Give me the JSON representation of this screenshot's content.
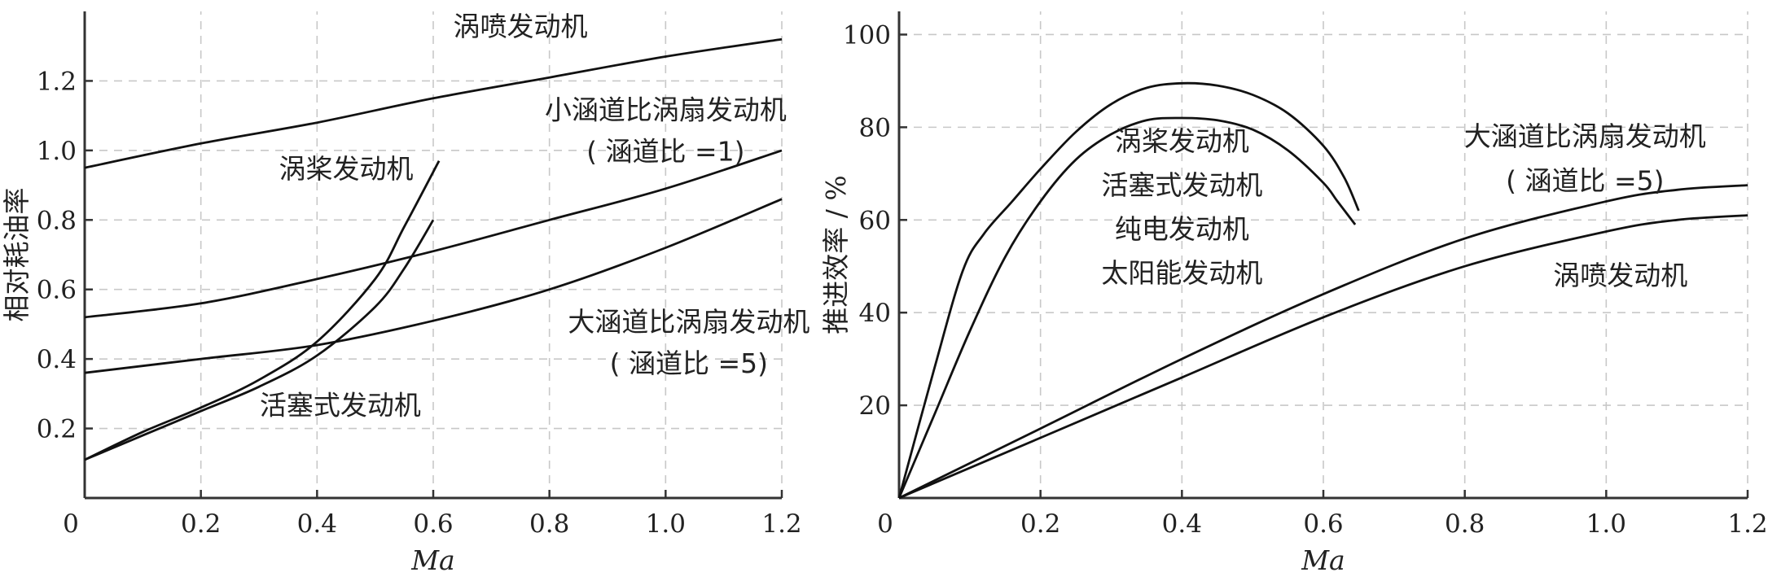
{
  "chart_data": [
    {
      "type": "line",
      "xlabel": "Ma",
      "ylabel": "相对耗油率",
      "xlim": [
        0,
        1.2
      ],
      "ylim": [
        0,
        1.4
      ],
      "xticks": [
        "0",
        "0.2",
        "0.4",
        "0.6",
        "0.8",
        "1.0",
        "1.2"
      ],
      "yticks": [
        "0.2",
        "0.4",
        "0.6",
        "0.8",
        "1.0",
        "1.2"
      ],
      "grid": true,
      "series": [
        {
          "name": "涡喷发动机",
          "x": [
            0,
            0.2,
            0.4,
            0.6,
            0.8,
            1.0,
            1.2
          ],
          "y": [
            0.95,
            1.02,
            1.08,
            1.15,
            1.21,
            1.27,
            1.32
          ]
        },
        {
          "name": "小涵道比涡扇发动机",
          "x": [
            0,
            0.2,
            0.4,
            0.6,
            0.8,
            1.0,
            1.2
          ],
          "y": [
            0.52,
            0.56,
            0.63,
            0.71,
            0.8,
            0.89,
            1.0
          ]
        },
        {
          "name": "大涵道比涡扇发动机",
          "x": [
            0,
            0.2,
            0.4,
            0.6,
            0.8,
            1.0,
            1.2
          ],
          "y": [
            0.36,
            0.4,
            0.44,
            0.51,
            0.6,
            0.72,
            0.86
          ]
        },
        {
          "name": "涡桨发动机",
          "x": [
            0,
            0.1,
            0.2,
            0.3,
            0.4,
            0.5,
            0.55,
            0.61
          ],
          "y": [
            0.11,
            0.19,
            0.26,
            0.34,
            0.45,
            0.63,
            0.78,
            0.97
          ]
        },
        {
          "name": "活塞式发动机",
          "x": [
            0,
            0.1,
            0.2,
            0.3,
            0.4,
            0.5,
            0.55,
            0.6
          ],
          "y": [
            0.11,
            0.18,
            0.25,
            0.32,
            0.41,
            0.55,
            0.66,
            0.8
          ]
        }
      ],
      "annotations": [
        {
          "text": "涡喷发动机",
          "x": 0.75,
          "y": 1.33
        },
        {
          "text": "小涵道比涡扇发动机",
          "x": 1.0,
          "y": 1.09
        },
        {
          "text": "( 涵道比 =1)",
          "x": 1.0,
          "y": 0.97
        },
        {
          "text": "涡桨发动机",
          "x": 0.45,
          "y": 0.92
        },
        {
          "text": "大涵道比涡扇发动机",
          "x": 1.04,
          "y": 0.48
        },
        {
          "text": "( 涵道比 =5)",
          "x": 1.04,
          "y": 0.36
        },
        {
          "text": "活塞式发动机",
          "x": 0.44,
          "y": 0.24
        }
      ]
    },
    {
      "type": "line",
      "xlabel": "Ma",
      "ylabel": "推进效率 / %",
      "xlim": [
        0,
        1.2
      ],
      "ylim": [
        0,
        105
      ],
      "xticks": [
        "0",
        "0.2",
        "0.4",
        "0.6",
        "0.8",
        "1.0",
        "1.2"
      ],
      "yticks": [
        "20",
        "40",
        "60",
        "80",
        "100"
      ],
      "grid": true,
      "series": [
        {
          "name": "涡桨发动机 活塞式发动机 纯电发动机 太阳能发动机 (outer)",
          "x": [
            0,
            0.05,
            0.09,
            0.12,
            0.16,
            0.2,
            0.25,
            0.3,
            0.35,
            0.4,
            0.45,
            0.5,
            0.55,
            0.6,
            0.63,
            0.65
          ],
          "y": [
            0,
            28,
            49,
            57,
            64,
            71,
            79,
            85,
            88.5,
            89.5,
            89,
            87,
            83,
            76,
            69,
            62
          ]
        },
        {
          "name": "涡桨发动机 活塞式发动机 纯电发动机 太阳能发动机 (inner)",
          "x": [
            0,
            0.05,
            0.1,
            0.15,
            0.2,
            0.25,
            0.3,
            0.35,
            0.4,
            0.45,
            0.5,
            0.55,
            0.6,
            0.62,
            0.645
          ],
          "y": [
            0,
            18,
            36,
            52,
            64,
            73,
            78.5,
            81.5,
            82,
            81.5,
            79.5,
            75,
            68,
            64,
            59
          ]
        },
        {
          "name": "大涵道比涡扇发动机",
          "x": [
            0,
            0.2,
            0.4,
            0.6,
            0.8,
            1.0,
            1.1,
            1.2
          ],
          "y": [
            0,
            15,
            30,
            44,
            56,
            64,
            66.5,
            67.5
          ]
        },
        {
          "name": "涡喷发动机",
          "x": [
            0,
            0.2,
            0.4,
            0.6,
            0.8,
            1.0,
            1.1,
            1.2
          ],
          "y": [
            0,
            13,
            26,
            39,
            50,
            57.5,
            60,
            61
          ]
        }
      ],
      "annotations": [
        {
          "text": "涡桨发动机",
          "x": 0.4,
          "y": 75
        },
        {
          "text": "活塞式发动机",
          "x": 0.4,
          "y": 65.5
        },
        {
          "text": "纯电发动机",
          "x": 0.4,
          "y": 56
        },
        {
          "text": "太阳能发动机",
          "x": 0.4,
          "y": 46.5
        },
        {
          "text": "大涵道比涡扇发动机",
          "x": 0.97,
          "y": 76
        },
        {
          "text": "( 涵道比 =5)",
          "x": 0.97,
          "y": 66.5
        },
        {
          "text": "涡喷发动机",
          "x": 1.02,
          "y": 46
        }
      ]
    }
  ]
}
